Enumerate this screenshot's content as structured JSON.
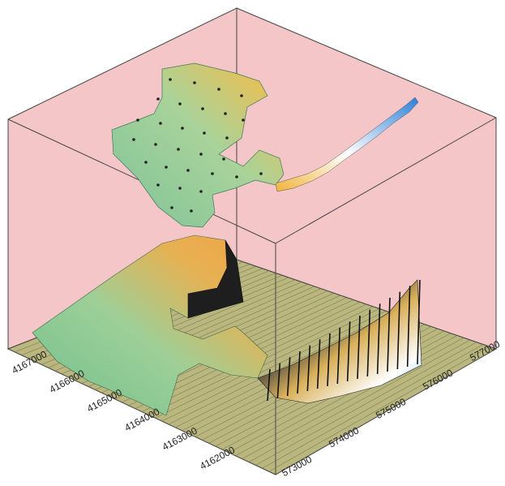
{
  "chart_data": {
    "type": "3d-surface",
    "title": "",
    "xlabel": "",
    "ylabel": "",
    "zlabel": "",
    "grid": true,
    "x_axis": {
      "ticks": [
        "573000",
        "574000",
        "575000",
        "576000",
        "577000"
      ],
      "values": [
        573000,
        574000,
        575000,
        576000,
        577000
      ]
    },
    "y_axis": {
      "ticks": [
        "4162000",
        "4163000",
        "4164000",
        "4165000",
        "4166000",
        "4167000"
      ],
      "values": [
        4162000,
        4163000,
        4164000,
        4165000,
        4166000,
        4167000
      ]
    },
    "series": [
      {
        "kind": "floating-surface-with-grid-points",
        "colormap": [
          "#7fc29a",
          "#a8d39a",
          "#e8c25a",
          "#f1b43a"
        ]
      },
      {
        "kind": "floating-line-ribbon",
        "colormap": [
          "#f1b43a",
          "#ffffff",
          "#2b7fd8"
        ]
      },
      {
        "kind": "base-terrain-surface",
        "colormap": [
          "#6fbf8e",
          "#9ecf97",
          "#e6b153",
          "#f2a243",
          "#1b1b1b",
          "#4fb4e8"
        ]
      }
    ],
    "colors": {
      "background": "#f5c6c8",
      "floor": "#b9b77f",
      "box_edges": "#444444"
    }
  }
}
